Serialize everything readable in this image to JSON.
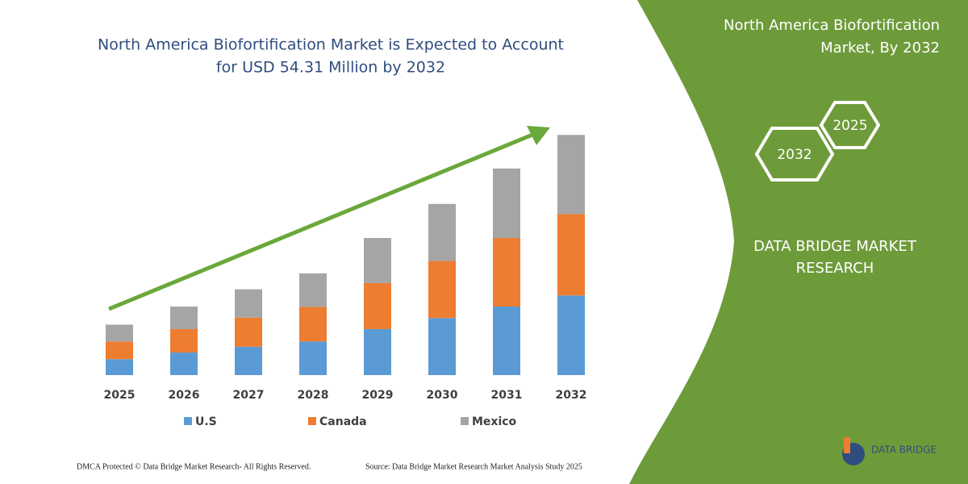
{
  "chart_data": {
    "type": "stacked-bar",
    "title": [
      "North America Biofortification Market is Expected to Account",
      "for USD 54.31 Million by 2032"
    ],
    "categories": [
      "2025",
      "2026",
      "2027",
      "2028",
      "2029",
      "2030",
      "2031",
      "2032"
    ],
    "series": [
      {
        "name": "U.S",
        "color": "#5b9bd5",
        "values": [
          3.6,
          5.1,
          6.4,
          7.6,
          10.4,
          12.9,
          15.5,
          18.0
        ]
      },
      {
        "name": "Canada",
        "color": "#ed7d31",
        "values": [
          4.0,
          5.3,
          6.6,
          7.8,
          10.4,
          12.9,
          15.5,
          18.4
        ]
      },
      {
        "name": "Mexico",
        "color": "#a5a5a5",
        "values": [
          3.8,
          5.1,
          6.4,
          7.6,
          10.2,
          12.9,
          15.7,
          17.9
        ]
      }
    ],
    "ylim": [
      0,
      60
    ]
  },
  "sidebar": {
    "title": [
      "North America Biofortification",
      "Market, By 2032"
    ],
    "hexagons": [
      "2032",
      "2025"
    ],
    "brand": [
      "DATA BRIDGE MARKET",
      "RESEARCH"
    ],
    "logo": "DATA BRIDGE"
  },
  "footer": {
    "copyright": "DMCA Protected © Data Bridge Market Research-  All Rights Reserved.",
    "source": "Source: Data Bridge Market Research  Market Analysis Study 2025"
  }
}
